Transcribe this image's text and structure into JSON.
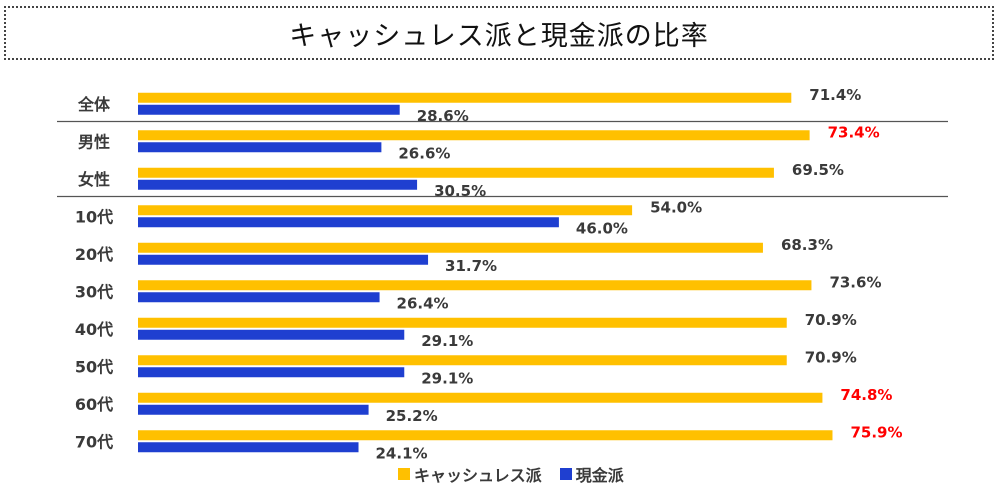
{
  "title": "キャッシュレス派と現金派の比率",
  "colors": {
    "cashless": "#FFC000",
    "cash": "#1F3FD0",
    "highlight": "#FF0000",
    "separator": "#555555"
  },
  "chart_data": {
    "type": "bar",
    "orientation": "horizontal",
    "title": "キャッシュレス派と現金派の比率",
    "unit": "%",
    "xlim": [
      0,
      100
    ],
    "grid": false,
    "legend": "bottom",
    "categories": [
      "全体",
      "男性",
      "女性",
      "10代",
      "20代",
      "30代",
      "40代",
      "50代",
      "60代",
      "70代"
    ],
    "series": [
      {
        "name": "キャッシュレス派",
        "values": [
          71.4,
          73.4,
          69.5,
          54.0,
          68.3,
          73.6,
          70.9,
          70.9,
          74.8,
          75.9
        ],
        "labels": [
          "71.4%",
          "73.4%",
          "69.5%",
          "54.0%",
          "68.3%",
          "73.6%",
          "70.9%",
          "70.9%",
          "74.8%",
          "75.9%"
        ]
      },
      {
        "name": "現金派",
        "values": [
          28.6,
          26.6,
          30.5,
          46.0,
          31.7,
          26.4,
          29.1,
          29.1,
          25.2,
          24.1
        ],
        "labels": [
          "28.6%",
          "26.6%",
          "30.5%",
          "46.0%",
          "31.7%",
          "26.4%",
          "29.1%",
          "29.1%",
          "25.2%",
          "24.1%"
        ]
      }
    ],
    "highlighted_labels": [
      "男性",
      "60代",
      "70代"
    ],
    "group_separators_after": [
      "全体",
      "女性"
    ]
  },
  "legend": {
    "items": [
      "キャッシュレス派",
      "現金派"
    ]
  }
}
